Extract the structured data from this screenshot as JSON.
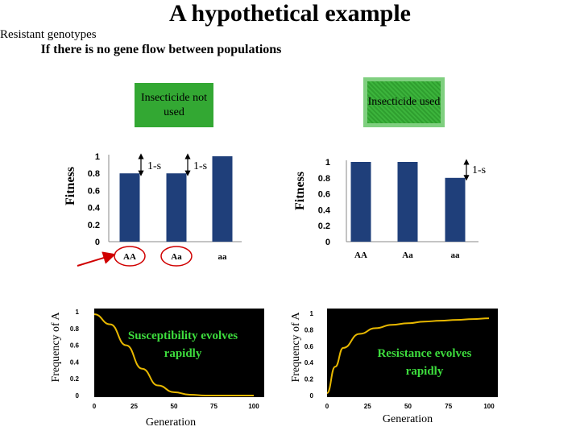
{
  "title": "A hypothetical example",
  "boxes": {
    "left": "Insecticide not used",
    "right": "Insecticide used"
  },
  "axis_labels": {
    "fitness": "Fitness",
    "frequency": "Frequency of A",
    "generation": "Generation"
  },
  "resistant_label": "Resistant genotypes",
  "gene_flow_text": "If there is no gene flow between populations",
  "colors": {
    "bar": "#1f3f7a",
    "curve": "#e8b800",
    "box_green": "#33a833",
    "arrow": "#d00000",
    "curve_text": "#3ddc3d"
  },
  "chart_data": [
    {
      "type": "bar",
      "categories": [
        "AA",
        "Aa",
        "aa"
      ],
      "values": [
        0.8,
        0.8,
        1.0
      ],
      "ylim": [
        0,
        1
      ],
      "yticks": [
        "0",
        "0.2",
        "0.4",
        "0.6",
        "0.8",
        "1"
      ],
      "ylabel": "Fitness",
      "annotations": [
        "1-s",
        "1-s"
      ]
    },
    {
      "type": "bar",
      "categories": [
        "AA",
        "Aa",
        "aa"
      ],
      "values": [
        1.0,
        1.0,
        0.8
      ],
      "ylim": [
        0,
        1
      ],
      "yticks": [
        "0",
        "0.2",
        "0.4",
        "0.6",
        "0.8",
        "1"
      ],
      "ylabel": "Fitness",
      "annotations": [
        "1-s"
      ]
    },
    {
      "type": "line",
      "x": [
        0,
        10,
        20,
        30,
        40,
        50,
        60,
        70,
        80,
        90,
        100
      ],
      "y": [
        0.97,
        0.85,
        0.6,
        0.32,
        0.12,
        0.04,
        0.01,
        0.0,
        0.0,
        0.0,
        0.0
      ],
      "xlim": [
        0,
        100
      ],
      "ylim": [
        0,
        1
      ],
      "xticks": [
        "0",
        "25",
        "50",
        "75",
        "100"
      ],
      "yticks": [
        "0",
        "0.2",
        "0.4",
        "0.6",
        "0.8",
        "1"
      ],
      "xlabel": "Generation",
      "ylabel": "Frequency of A",
      "annotation": "Susceptibility evolves rapidly"
    },
    {
      "type": "line",
      "x": [
        0,
        5,
        10,
        20,
        30,
        40,
        50,
        60,
        70,
        80,
        90,
        100
      ],
      "y": [
        0.03,
        0.35,
        0.58,
        0.75,
        0.82,
        0.86,
        0.88,
        0.9,
        0.91,
        0.92,
        0.93,
        0.94
      ],
      "xlim": [
        0,
        100
      ],
      "ylim": [
        0,
        1
      ],
      "xticks": [
        "0",
        "25",
        "50",
        "75",
        "100"
      ],
      "yticks": [
        "0",
        "0.2",
        "0.4",
        "0.6",
        "0.8",
        "1"
      ],
      "xlabel": "Generation",
      "ylabel": "Frequency of A",
      "annotation": "Resistance evolves rapidly"
    }
  ]
}
